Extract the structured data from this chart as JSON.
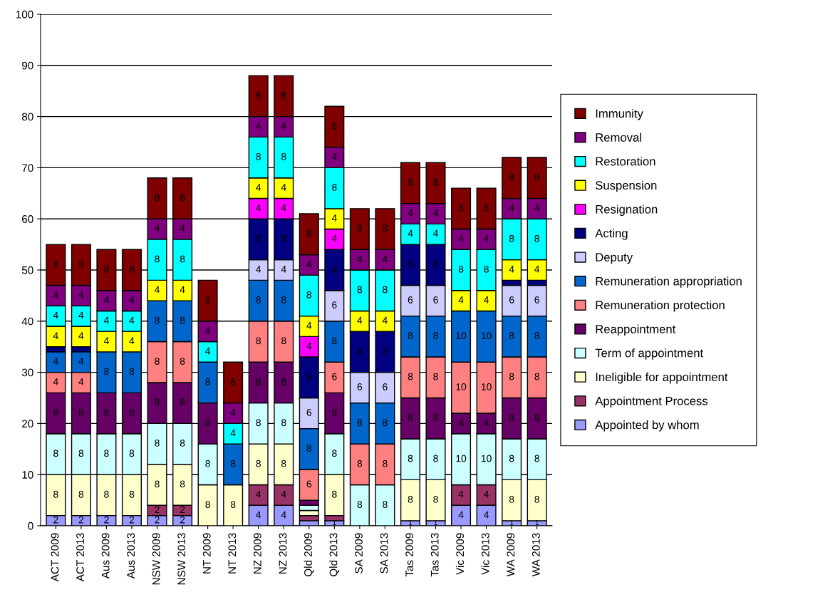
{
  "chart_data": {
    "type": "bar",
    "stacked": true,
    "grid": "y",
    "legend": "right",
    "ylim": [
      0,
      100
    ],
    "yticks": [
      0,
      10,
      20,
      30,
      40,
      50,
      60,
      70,
      80,
      90,
      100
    ],
    "categories": [
      "ACT 2009",
      "ACT 2013",
      "Aus 2009",
      "Aus 2013",
      "NSW 2009",
      "NSW 2013",
      "NT 2009",
      "NT 2013",
      "NZ 2009",
      "NZ 2013",
      "Qld 2009",
      "Qld 2013",
      "SA 2009",
      "SA 2013",
      "Tas 2009",
      "Tas 2013",
      "Vic 2009",
      "Vic 2013",
      "WA 2009",
      "WA 2013"
    ],
    "series": [
      {
        "name": "Appointed by whom",
        "color": "#9999ff",
        "values": [
          2,
          2,
          2,
          2,
          2,
          2,
          0,
          0,
          4,
          4,
          1,
          1,
          0,
          0,
          1,
          1,
          4,
          4,
          1,
          1
        ],
        "value_labels": [
          "2",
          "2",
          "2",
          "2",
          "2",
          "2",
          null,
          null,
          "4",
          "4",
          null,
          "1",
          null,
          null,
          "1",
          "1",
          "4",
          "4",
          "1",
          "1"
        ]
      },
      {
        "name": "Appointment Process",
        "color": "#993366",
        "values": [
          0,
          0,
          0,
          0,
          2,
          2,
          0,
          0,
          4,
          4,
          1,
          1,
          0,
          0,
          0,
          0,
          4,
          4,
          0,
          0
        ],
        "value_labels": [
          null,
          null,
          null,
          null,
          "2",
          "2",
          null,
          null,
          "4",
          "4",
          null,
          null,
          null,
          null,
          null,
          null,
          "4",
          "4",
          null,
          null
        ]
      },
      {
        "name": "Ineligible for appointment",
        "color": "#ffffcc",
        "values": [
          8,
          8,
          8,
          8,
          8,
          8,
          8,
          8,
          8,
          8,
          1,
          8,
          0,
          0,
          8,
          8,
          0,
          0,
          8,
          8
        ],
        "value_labels": [
          "8",
          "8",
          "8",
          "8",
          "8",
          "8",
          "8",
          "8",
          "8",
          "8",
          null,
          "8",
          null,
          null,
          "8",
          "8",
          null,
          null,
          "8",
          "8"
        ]
      },
      {
        "name": "Term of appointment",
        "color": "#ccffff",
        "values": [
          8,
          8,
          8,
          8,
          8,
          8,
          8,
          0,
          8,
          8,
          1,
          8,
          8,
          8,
          8,
          8,
          10,
          10,
          8,
          8
        ],
        "value_labels": [
          "8",
          "8",
          "8",
          "8",
          "8",
          "8",
          "8",
          null,
          "8",
          "8",
          null,
          "8",
          "8",
          "8",
          "8",
          "8",
          "10",
          "10",
          "8",
          "8"
        ]
      },
      {
        "name": "Reappointment",
        "color": "#660066",
        "values": [
          8,
          8,
          8,
          8,
          8,
          8,
          8,
          0,
          8,
          8,
          1,
          8,
          0,
          0,
          8,
          8,
          4,
          4,
          8,
          8
        ],
        "value_labels": [
          "8",
          "8",
          "8",
          "8",
          "8",
          "8",
          "8",
          null,
          "8",
          "8",
          null,
          "8",
          null,
          null,
          "8",
          "8",
          "4",
          "4",
          "8",
          "8"
        ]
      },
      {
        "name": "Remuneration protection",
        "color": "#ff8080",
        "values": [
          4,
          4,
          0,
          0,
          8,
          8,
          0,
          0,
          8,
          8,
          6,
          6,
          8,
          8,
          8,
          8,
          10,
          10,
          8,
          8
        ],
        "value_labels": [
          "4",
          "4",
          null,
          null,
          "8",
          "8",
          null,
          null,
          "8",
          "8",
          "6",
          "6",
          "8",
          "8",
          "8",
          "8",
          "10",
          "10",
          "8",
          "8"
        ]
      },
      {
        "name": "Remuneration appropriation",
        "color": "#0066cc",
        "values": [
          4,
          4,
          8,
          8,
          8,
          8,
          8,
          8,
          8,
          8,
          8,
          8,
          8,
          8,
          8,
          8,
          10,
          10,
          8,
          8
        ],
        "value_labels": [
          "4",
          "4",
          "8",
          "8",
          "8",
          "8",
          "8",
          "8",
          "8",
          "8",
          "8",
          "8",
          "8",
          "8",
          "8",
          "8",
          "10",
          "10",
          "8",
          "8"
        ]
      },
      {
        "name": "Deputy",
        "color": "#ccccff",
        "values": [
          0,
          0,
          0,
          0,
          0,
          0,
          0,
          0,
          4,
          4,
          6,
          6,
          6,
          6,
          6,
          6,
          0,
          0,
          6,
          6
        ],
        "value_labels": [
          null,
          null,
          null,
          null,
          null,
          null,
          null,
          null,
          "4",
          "4",
          "6",
          "6",
          "6",
          "6",
          "6",
          "6",
          null,
          null,
          "6",
          "6"
        ]
      },
      {
        "name": "Acting",
        "color": "#000080",
        "values": [
          1,
          1,
          0,
          0,
          0,
          0,
          0,
          0,
          8,
          8,
          8,
          8,
          8,
          8,
          8,
          8,
          0,
          0,
          1,
          1
        ],
        "value_labels": [
          null,
          null,
          null,
          null,
          null,
          null,
          null,
          null,
          "8",
          "8",
          "8",
          "8",
          "8",
          "8",
          "8",
          "8",
          null,
          null,
          null,
          null
        ]
      },
      {
        "name": "Resignation",
        "color": "#ff00ff",
        "values": [
          0,
          0,
          0,
          0,
          0,
          0,
          0,
          0,
          4,
          4,
          4,
          4,
          0,
          0,
          0,
          0,
          0,
          0,
          0,
          0
        ],
        "value_labels": [
          null,
          null,
          null,
          null,
          null,
          null,
          null,
          null,
          "4",
          "4",
          "4",
          "4",
          null,
          null,
          null,
          null,
          null,
          null,
          null,
          null
        ]
      },
      {
        "name": "Suspension",
        "color": "#ffff00",
        "values": [
          4,
          4,
          4,
          4,
          4,
          4,
          0,
          0,
          4,
          4,
          4,
          4,
          4,
          4,
          0,
          0,
          4,
          4,
          4,
          4
        ],
        "value_labels": [
          "4",
          "4",
          "4",
          "4",
          "4",
          "4",
          null,
          null,
          "4",
          "4",
          "4",
          "4",
          "4",
          "4",
          null,
          null,
          "4",
          "4",
          "4",
          "4"
        ]
      },
      {
        "name": "Restoration",
        "color": "#00ffff",
        "values": [
          4,
          4,
          4,
          4,
          8,
          8,
          4,
          4,
          8,
          8,
          8,
          8,
          8,
          8,
          4,
          4,
          8,
          8,
          8,
          8
        ],
        "value_labels": [
          "4",
          "4",
          "4",
          "4",
          "8",
          "8",
          "4",
          "4",
          "8",
          "8",
          "8",
          "8",
          "8",
          "8",
          "4",
          "4",
          "8",
          "8",
          "8",
          "8"
        ]
      },
      {
        "name": "Removal",
        "color": "#800080",
        "values": [
          4,
          4,
          4,
          4,
          4,
          4,
          4,
          4,
          4,
          4,
          4,
          4,
          4,
          4,
          4,
          4,
          4,
          4,
          4,
          4
        ],
        "value_labels": [
          "4",
          "4",
          "4",
          "4",
          "4",
          "4",
          "4",
          "4",
          "4",
          "4",
          "4",
          "4",
          "4",
          "4",
          "4",
          "4",
          "4",
          "4",
          "4",
          "4"
        ]
      },
      {
        "name": "Immunity",
        "color": "#800000",
        "values": [
          8,
          8,
          8,
          8,
          8,
          8,
          8,
          8,
          8,
          8,
          8,
          8,
          8,
          8,
          8,
          8,
          8,
          8,
          8,
          8
        ],
        "value_labels": [
          "8",
          "8",
          "8",
          "8",
          "8",
          "8",
          "8",
          "8",
          "8",
          "8",
          "8",
          "8",
          "8",
          "8",
          "8",
          "8",
          "8",
          "8",
          "8",
          "8"
        ]
      }
    ]
  }
}
